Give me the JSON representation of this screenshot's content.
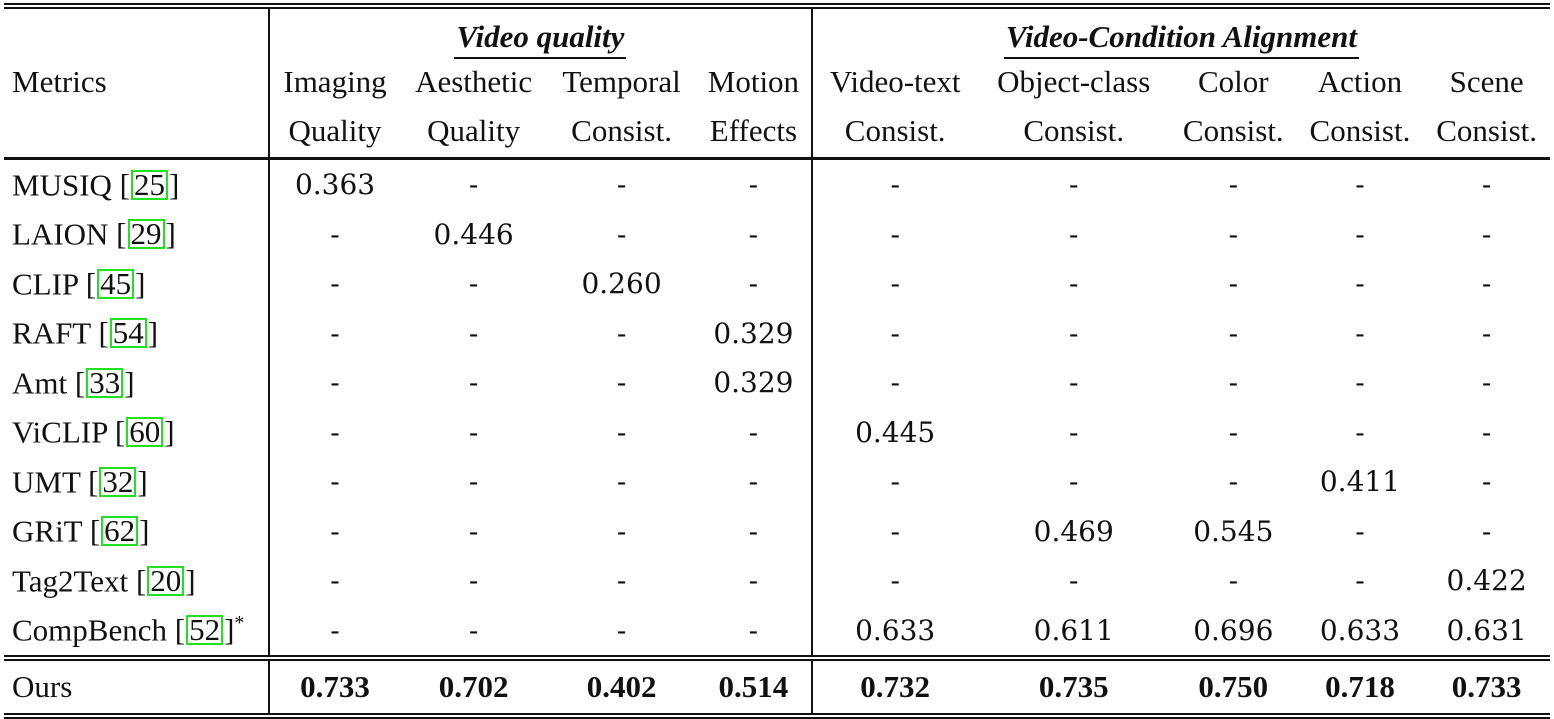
{
  "table": {
    "metrics_label": "Metrics",
    "groups": [
      {
        "label": "Video quality",
        "span": 4
      },
      {
        "label": "Video-Condition Alignment",
        "span": 5
      }
    ],
    "columns": [
      {
        "line1": "Imaging",
        "line2": "Quality"
      },
      {
        "line1": "Aesthetic",
        "line2": "Quality"
      },
      {
        "line1": "Temporal",
        "line2": "Consist."
      },
      {
        "line1": "Motion",
        "line2": "Effects"
      },
      {
        "line1": "Video-text",
        "line2": "Consist."
      },
      {
        "line1": "Object-class",
        "line2": "Consist."
      },
      {
        "line1": "Color",
        "line2": "Consist."
      },
      {
        "line1": "Action",
        "line2": "Consist."
      },
      {
        "line1": "Scene",
        "line2": "Consist."
      }
    ],
    "rows": [
      {
        "name": "MUSIQ",
        "cite": "25",
        "star": "",
        "values": [
          "0.363",
          "-",
          "-",
          "-",
          "-",
          "-",
          "-",
          "-",
          "-"
        ]
      },
      {
        "name": "LAION",
        "cite": "29",
        "star": "",
        "values": [
          "-",
          "0.446",
          "-",
          "-",
          "-",
          "-",
          "-",
          "-",
          "-"
        ]
      },
      {
        "name": "CLIP",
        "cite": "45",
        "star": "",
        "values": [
          "-",
          "-",
          "0.260",
          "-",
          "-",
          "-",
          "-",
          "-",
          "-"
        ]
      },
      {
        "name": "RAFT",
        "cite": "54",
        "star": "",
        "values": [
          "-",
          "-",
          "-",
          "0.329",
          "-",
          "-",
          "-",
          "-",
          "-"
        ]
      },
      {
        "name": "Amt",
        "cite": "33",
        "star": "",
        "values": [
          "-",
          "-",
          "-",
          "0.329",
          "-",
          "-",
          "-",
          "-",
          "-"
        ]
      },
      {
        "name": "ViCLIP",
        "cite": "60",
        "star": "",
        "values": [
          "-",
          "-",
          "-",
          "-",
          "0.445",
          "-",
          "-",
          "-",
          "-"
        ]
      },
      {
        "name": "UMT",
        "cite": "32",
        "star": "",
        "values": [
          "-",
          "-",
          "-",
          "-",
          "-",
          "-",
          "-",
          "0.411",
          "-"
        ]
      },
      {
        "name": "GRiT",
        "cite": "62",
        "star": "",
        "values": [
          "-",
          "-",
          "-",
          "-",
          "-",
          "0.469",
          "0.545",
          "-",
          "-"
        ]
      },
      {
        "name": "Tag2Text",
        "cite": "20",
        "star": "",
        "values": [
          "-",
          "-",
          "-",
          "-",
          "-",
          "-",
          "-",
          "-",
          "0.422"
        ]
      },
      {
        "name": "CompBench",
        "cite": "52",
        "star": "*",
        "values": [
          "-",
          "-",
          "-",
          "-",
          "0.633",
          "0.611",
          "0.696",
          "0.633",
          "0.631"
        ]
      }
    ],
    "ours": {
      "name": "Ours",
      "values": [
        "0.733",
        "0.702",
        "0.402",
        "0.514",
        "0.732",
        "0.735",
        "0.750",
        "0.718",
        "0.733"
      ]
    }
  },
  "colors": {
    "rule": "#111111",
    "citation_box": "#22e022"
  }
}
